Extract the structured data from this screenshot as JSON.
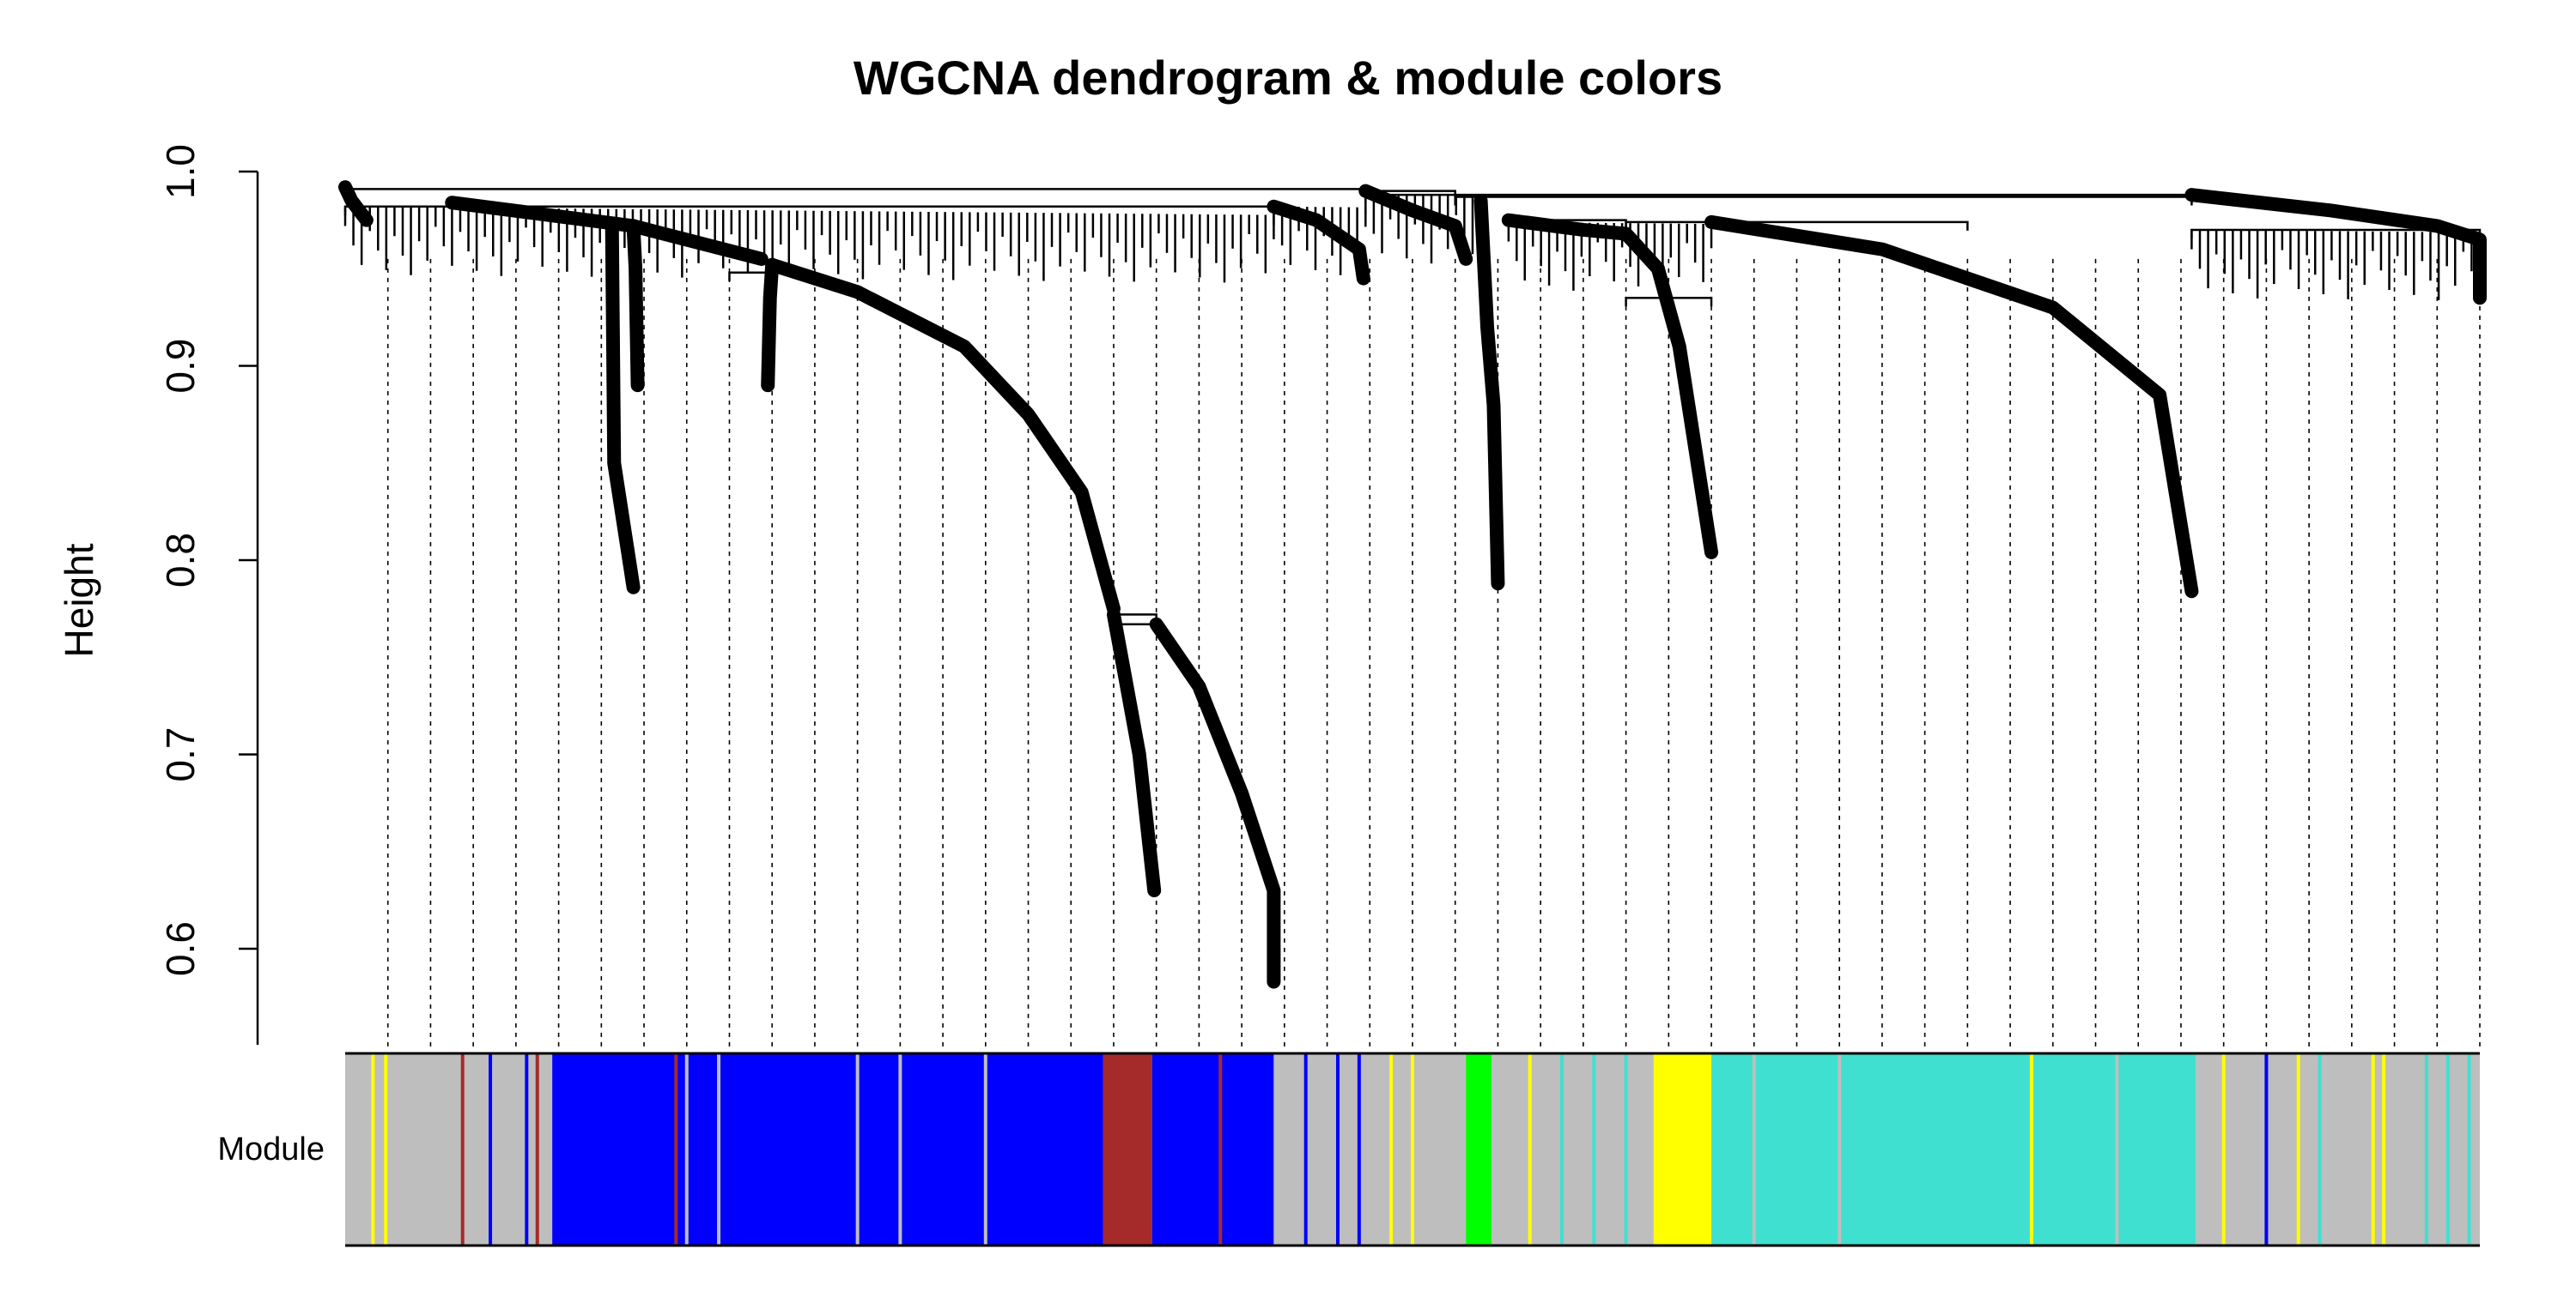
{
  "chart_data": {
    "type": "dendrogram",
    "title": "WGCNA dendrogram & module colors",
    "ylabel": "Height",
    "ylim": [
      0.55,
      1.0
    ],
    "yticks": [
      0.6,
      0.7,
      0.8,
      0.9,
      1.0
    ],
    "ytick_labels": [
      "0.6",
      "0.7",
      "0.8",
      "0.9",
      "1.0"
    ],
    "xlim": [
      0,
      1
    ],
    "color_row_label": "Module",
    "module_colors": {
      "grey": "#BEBEBE",
      "blue": "#0000FF",
      "brown": "#A52A2A",
      "green": "#00FF00",
      "yellow": "#FFFF00",
      "turquoise": "#40E0D0"
    },
    "merges": [
      {
        "x1": 0.0,
        "x2": 0.478,
        "height": 0.991
      },
      {
        "x1": 0.478,
        "x2": 0.865,
        "height": 0.988
      },
      {
        "x1": 0.0,
        "x2": 0.435,
        "height": 0.982
      },
      {
        "x1": 0.478,
        "x2": 0.52,
        "height": 0.99
      },
      {
        "x1": 0.52,
        "x2": 0.865,
        "height": 0.987
      },
      {
        "x1": 0.545,
        "x2": 0.6,
        "height": 0.975
      },
      {
        "x1": 0.6,
        "x2": 0.76,
        "height": 0.974
      },
      {
        "x1": 0.865,
        "x2": 1.0,
        "height": 0.97
      },
      {
        "x1": 0.18,
        "x2": 0.2,
        "height": 0.948
      },
      {
        "x1": 0.6,
        "x2": 0.64,
        "height": 0.935
      },
      {
        "x1": 0.36,
        "x2": 0.38,
        "height": 0.772
      },
      {
        "x1": 0.36,
        "x2": 0.38,
        "height": 0.767
      }
    ],
    "branches": [
      {
        "points": [
          [
            0.0,
            0.992
          ],
          [
            0.003,
            0.985
          ],
          [
            0.01,
            0.975
          ]
        ]
      },
      {
        "points": [
          [
            0.05,
            0.984
          ],
          [
            0.135,
            0.972
          ],
          [
            0.195,
            0.955
          ]
        ]
      },
      {
        "points": [
          [
            0.135,
            0.972
          ],
          [
            0.136,
            0.95
          ],
          [
            0.137,
            0.89
          ]
        ]
      },
      {
        "points": [
          [
            0.2,
            0.952
          ],
          [
            0.199,
            0.935
          ],
          [
            0.198,
            0.89
          ]
        ]
      },
      {
        "points": [
          [
            0.125,
            0.97
          ],
          [
            0.126,
            0.85
          ],
          [
            0.135,
            0.786
          ]
        ]
      },
      {
        "points": [
          [
            0.2,
            0.952
          ],
          [
            0.24,
            0.938
          ],
          [
            0.29,
            0.91
          ],
          [
            0.32,
            0.875
          ],
          [
            0.345,
            0.835
          ],
          [
            0.36,
            0.775
          ]
        ]
      },
      {
        "points": [
          [
            0.36,
            0.772
          ],
          [
            0.372,
            0.7
          ],
          [
            0.379,
            0.63
          ]
        ]
      },
      {
        "points": [
          [
            0.38,
            0.767
          ],
          [
            0.4,
            0.735
          ],
          [
            0.42,
            0.68
          ],
          [
            0.435,
            0.63
          ],
          [
            0.435,
            0.583
          ]
        ]
      },
      {
        "points": [
          [
            0.435,
            0.982
          ],
          [
            0.455,
            0.975
          ],
          [
            0.475,
            0.96
          ],
          [
            0.477,
            0.945
          ]
        ]
      },
      {
        "points": [
          [
            0.478,
            0.99
          ],
          [
            0.5,
            0.98
          ],
          [
            0.52,
            0.972
          ],
          [
            0.525,
            0.955
          ]
        ]
      },
      {
        "points": [
          [
            0.532,
            0.985
          ],
          [
            0.535,
            0.92
          ],
          [
            0.538,
            0.88
          ],
          [
            0.54,
            0.788
          ]
        ]
      },
      {
        "points": [
          [
            0.545,
            0.975
          ],
          [
            0.58,
            0.97
          ],
          [
            0.6,
            0.968
          ],
          [
            0.615,
            0.95
          ]
        ]
      },
      {
        "points": [
          [
            0.615,
            0.95
          ],
          [
            0.625,
            0.91
          ],
          [
            0.64,
            0.804
          ]
        ]
      },
      {
        "points": [
          [
            0.64,
            0.974
          ],
          [
            0.72,
            0.96
          ],
          [
            0.8,
            0.93
          ],
          [
            0.85,
            0.885
          ],
          [
            0.865,
            0.784
          ]
        ]
      },
      {
        "points": [
          [
            0.865,
            0.988
          ],
          [
            0.93,
            0.98
          ],
          [
            0.98,
            0.972
          ],
          [
            1.0,
            0.965
          ],
          [
            1.0,
            0.935
          ]
        ]
      }
    ],
    "dotted_guides": [
      0.02,
      0.04,
      0.06,
      0.08,
      0.1,
      0.12,
      0.14,
      0.16,
      0.18,
      0.2,
      0.22,
      0.24,
      0.26,
      0.28,
      0.3,
      0.32,
      0.34,
      0.36,
      0.38,
      0.4,
      0.42,
      0.44,
      0.46,
      0.48,
      0.5,
      0.52,
      0.54,
      0.56,
      0.58,
      0.6,
      0.62,
      0.64,
      0.66,
      0.68,
      0.7,
      0.72,
      0.74,
      0.76,
      0.78,
      0.8,
      0.82,
      0.84,
      0.86,
      0.88,
      0.9,
      0.92,
      0.94,
      0.96,
      0.98,
      1.0
    ],
    "module_segments": [
      {
        "start": 0.0,
        "end": 0.097,
        "color": "grey"
      },
      {
        "start": 0.097,
        "end": 0.355,
        "color": "blue"
      },
      {
        "start": 0.355,
        "end": 0.378,
        "color": "brown"
      },
      {
        "start": 0.378,
        "end": 0.435,
        "color": "blue"
      },
      {
        "start": 0.435,
        "end": 0.525,
        "color": "grey"
      },
      {
        "start": 0.525,
        "end": 0.537,
        "color": "green"
      },
      {
        "start": 0.537,
        "end": 0.613,
        "color": "grey"
      },
      {
        "start": 0.613,
        "end": 0.64,
        "color": "yellow"
      },
      {
        "start": 0.64,
        "end": 0.867,
        "color": "turquoise"
      },
      {
        "start": 0.867,
        "end": 1.0,
        "color": "grey"
      }
    ],
    "module_stripes": [
      {
        "pos": 0.013,
        "color": "yellow"
      },
      {
        "pos": 0.019,
        "color": "yellow"
      },
      {
        "pos": 0.055,
        "color": "brown"
      },
      {
        "pos": 0.068,
        "color": "blue"
      },
      {
        "pos": 0.085,
        "color": "blue"
      },
      {
        "pos": 0.09,
        "color": "brown"
      },
      {
        "pos": 0.16,
        "color": "grey"
      },
      {
        "pos": 0.175,
        "color": "grey"
      },
      {
        "pos": 0.155,
        "color": "brown"
      },
      {
        "pos": 0.24,
        "color": "grey"
      },
      {
        "pos": 0.26,
        "color": "grey"
      },
      {
        "pos": 0.3,
        "color": "grey"
      },
      {
        "pos": 0.41,
        "color": "brown"
      },
      {
        "pos": 0.45,
        "color": "blue"
      },
      {
        "pos": 0.465,
        "color": "blue"
      },
      {
        "pos": 0.475,
        "color": "blue"
      },
      {
        "pos": 0.49,
        "color": "yellow"
      },
      {
        "pos": 0.5,
        "color": "yellow"
      },
      {
        "pos": 0.555,
        "color": "yellow"
      },
      {
        "pos": 0.57,
        "color": "turquoise"
      },
      {
        "pos": 0.585,
        "color": "turquoise"
      },
      {
        "pos": 0.6,
        "color": "turquoise"
      },
      {
        "pos": 0.66,
        "color": "grey"
      },
      {
        "pos": 0.7,
        "color": "grey"
      },
      {
        "pos": 0.79,
        "color": "yellow"
      },
      {
        "pos": 0.83,
        "color": "grey"
      },
      {
        "pos": 0.88,
        "color": "yellow"
      },
      {
        "pos": 0.9,
        "color": "blue"
      },
      {
        "pos": 0.915,
        "color": "yellow"
      },
      {
        "pos": 0.925,
        "color": "turquoise"
      },
      {
        "pos": 0.95,
        "color": "yellow"
      },
      {
        "pos": 0.955,
        "color": "yellow"
      },
      {
        "pos": 0.975,
        "color": "turquoise"
      },
      {
        "pos": 0.985,
        "color": "turquoise"
      },
      {
        "pos": 0.995,
        "color": "turquoise"
      }
    ]
  }
}
